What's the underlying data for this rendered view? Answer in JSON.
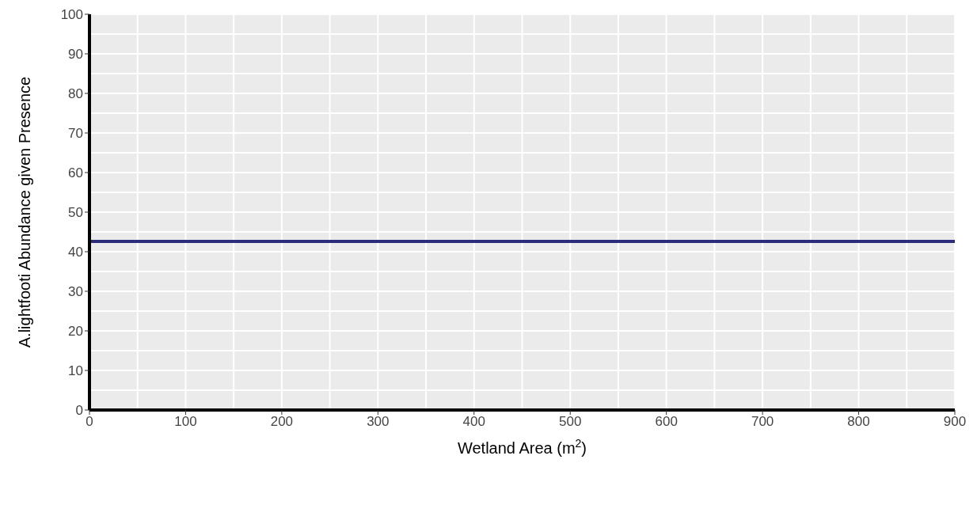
{
  "chart_data": {
    "type": "line",
    "xlabel": "Wetland Area (m$^{2}$)",
    "ylabel": "A.lightfooti Abundance given Presence",
    "x": [
      0,
      900
    ],
    "series": [
      {
        "color": "#2b2d7a",
        "values": [
          42.6,
          42.6
        ]
      }
    ],
    "xlim": [
      0,
      900
    ],
    "xticks": [
      0,
      100,
      200,
      300,
      400,
      500,
      600,
      700,
      800,
      900
    ],
    "ylim": [
      0,
      100
    ],
    "yticks": [
      0,
      10,
      20,
      30,
      40,
      50,
      60,
      70,
      80,
      90,
      100
    ],
    "grid": true,
    "legend": false,
    "marker": "none",
    "line_style": "solid"
  }
}
